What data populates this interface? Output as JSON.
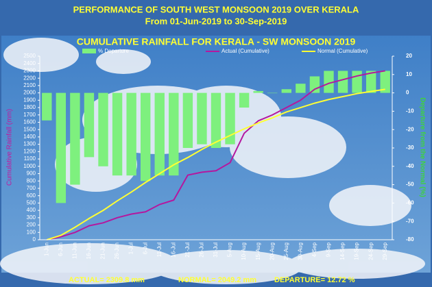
{
  "chart_data": {
    "type": "combo",
    "header_title": "PERFORMANCE OF SOUTH WEST MONSOON 2019 OVER KERALA",
    "header_subtitle": "From 01-Jun-2019 to 30-Sep-2019",
    "title": "CUMULATIVE RAINFALL FOR KERALA - SW MONSOON 2019",
    "ylabel": "Cumulative Rainfall (mm)",
    "y2label": "Departure from the Normal (%)",
    "categories": [
      "1-Jun",
      "6-Jun",
      "11-Jun",
      "16-Jun",
      "21-Jun",
      "26-Jun",
      "1-Jul",
      "6-Jul",
      "11-Jul",
      "16-Jul",
      "21-Jul",
      "26-Jul",
      "31-Jul",
      "5-Aug",
      "10-Aug",
      "15-Aug",
      "20-Aug",
      "25-Aug",
      "30-Aug",
      "4-Sep",
      "9-Sep",
      "14-Sep",
      "19-Sep",
      "24-Sep",
      "29-Sep"
    ],
    "series": [
      {
        "name": "% Departure",
        "type": "bar",
        "axis": "y2",
        "color": "#7ef07e",
        "values": [
          -15,
          -60,
          -50,
          -35,
          -40,
          -45,
          -45,
          -48,
          -45,
          -45,
          -30,
          -28,
          -30,
          -28,
          -8,
          1,
          0,
          2,
          5,
          9,
          12,
          12,
          12,
          12,
          12
        ]
      },
      {
        "name": "Actual (Cumulative)",
        "type": "line",
        "color": "#b5179e",
        "values": [
          0,
          40,
          100,
          190,
          230,
          300,
          350,
          380,
          480,
          540,
          880,
          920,
          940,
          1050,
          1450,
          1620,
          1700,
          1800,
          1900,
          2050,
          2130,
          2180,
          2230,
          2270,
          2300
        ]
      },
      {
        "name": "Normal (Cumulative)",
        "type": "line",
        "color": "#ffff33",
        "values": [
          0,
          60,
          170,
          290,
          400,
          530,
          650,
          780,
          900,
          1020,
          1120,
          1230,
          1330,
          1420,
          1510,
          1590,
          1660,
          1740,
          1800,
          1860,
          1910,
          1950,
          1990,
          2020,
          2049
        ]
      }
    ],
    "ylim": [
      0,
      2500
    ],
    "yticks": [
      0,
      100,
      200,
      300,
      400,
      500,
      600,
      700,
      800,
      900,
      1000,
      1100,
      1200,
      1300,
      1400,
      1500,
      1600,
      1700,
      1800,
      1900,
      2000,
      2100,
      2200,
      2300,
      2400,
      2500
    ],
    "y2lim": [
      -80,
      20
    ],
    "y2ticks": [
      -80,
      -70,
      -60,
      -50,
      -40,
      -30,
      -20,
      -10,
      0,
      10,
      20
    ],
    "annotations": [
      "ACTUAL= 2309.8 mm",
      "NORMAL= 2049.2 mm",
      "DEPARTURE= 12.72 %"
    ]
  }
}
